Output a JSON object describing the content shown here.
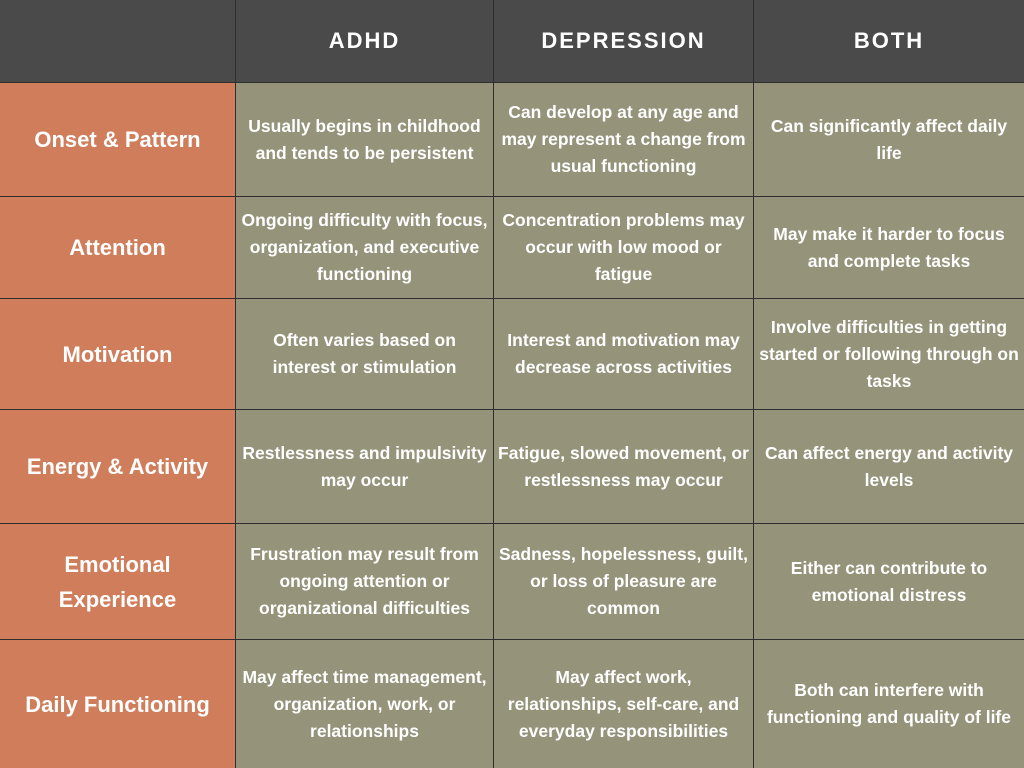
{
  "columns": [
    "",
    "ADHD",
    "DEPRESSION",
    "BOTH"
  ],
  "rows": [
    {
      "label": "Onset & Pattern",
      "cells": [
        "Usually begins in childhood and tends to be persistent",
        "Can develop at any age and may represent a change from usual functioning",
        "Can significantly affect daily life"
      ]
    },
    {
      "label": "Attention",
      "cells": [
        "Ongoing difficulty with focus, organization, and executive functioning",
        "Concentration problems may occur with low mood or fatigue",
        "May make it harder to focus and complete tasks"
      ]
    },
    {
      "label": "Motivation",
      "cells": [
        "Often varies based on interest or stimulation",
        "Interest and motivation may decrease across activities",
        "Involve difficulties in getting started or following through on tasks"
      ]
    },
    {
      "label": "Energy & Activity",
      "cells": [
        "Restlessness and impulsivity may occur",
        "Fatigue, slowed movement, or restlessness may occur",
        "Can affect energy and activity levels"
      ]
    },
    {
      "label": "Emotional Experience",
      "cells": [
        "Frustration may result from ongoing attention or organizational difficulties",
        "Sadness, hopelessness, guilt, or loss of pleasure are common",
        "Either can contribute to emotional distress"
      ]
    },
    {
      "label": "Daily Functioning",
      "cells": [
        "May affect time management, organization, work, or relationships",
        "May affect work, relationships, self-care, and everyday responsibilities",
        "Both can interfere with functioning and quality of life"
      ]
    }
  ],
  "colors": {
    "header_bg": "#4a4a4a",
    "row_label_bg": "#cf7d5a",
    "cell_bg": "#95937a",
    "text": "#ffffff",
    "grid_line": "#2e2e2e"
  }
}
